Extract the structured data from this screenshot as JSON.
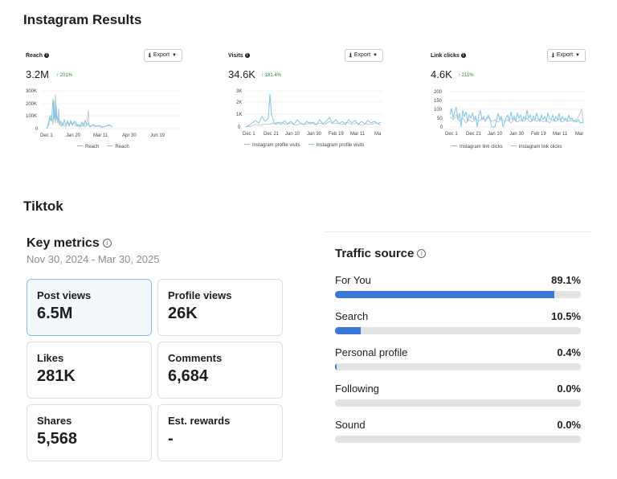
{
  "instagram": {
    "title": "Instagram Results",
    "export_label": "Export",
    "cards": [
      {
        "name": "Reach",
        "value": "3.2M",
        "change": "201%",
        "y_ticks": [
          "300K",
          "200K",
          "100K",
          "0"
        ],
        "x_ticks": [
          "Dec 1",
          "Jan 20",
          "Mar 11",
          "Apr 30",
          "Jun 19"
        ],
        "legend": [
          "Reach",
          "Reach"
        ]
      },
      {
        "name": "Visits",
        "value": "34.6K",
        "change": "181.4%",
        "y_ticks": [
          "3K",
          "2K",
          "1K",
          "0"
        ],
        "x_ticks": [
          "Dec 1",
          "Dec 21",
          "Jan 10",
          "Jan 30",
          "Feb 19",
          "Mar 11",
          "Ma"
        ],
        "legend": [
          "Instagram profile visits",
          "Instagram profile visits"
        ]
      },
      {
        "name": "Link clicks",
        "value": "4.6K",
        "change": "211%",
        "y_ticks": [
          "200",
          "150",
          "100",
          "50",
          "0"
        ],
        "x_ticks": [
          "Dec 1",
          "Dec 21",
          "Jan 10",
          "Jan 30",
          "Feb 19",
          "Mar 11",
          "Mar"
        ],
        "legend": [
          "Instagram link clicks",
          "Instagram link clicks"
        ]
      }
    ]
  },
  "tiktok": {
    "title": "Tiktok",
    "key_metrics": {
      "title": "Key metrics",
      "info_icon": "info-icon",
      "date_range": "Nov 30, 2024 - Mar 30, 2025",
      "metrics": [
        {
          "label": "Post views",
          "value": "6.5M"
        },
        {
          "label": "Profile views",
          "value": "26K"
        },
        {
          "label": "Likes",
          "value": "281K"
        },
        {
          "label": "Comments",
          "value": "6,684"
        },
        {
          "label": "Shares",
          "value": "5,568"
        },
        {
          "label": "Est. rewards",
          "value": "-"
        }
      ]
    },
    "traffic_source": {
      "title": "Traffic source",
      "sources": [
        {
          "name": "For You",
          "percent": "89.1%",
          "value": 89.1
        },
        {
          "name": "Search",
          "percent": "10.5%",
          "value": 10.5
        },
        {
          "name": "Personal profile",
          "percent": "0.4%",
          "value": 0.4
        },
        {
          "name": "Following",
          "percent": "0.0%",
          "value": 0.0
        },
        {
          "name": "Sound",
          "percent": "0.0%",
          "value": 0.0
        }
      ]
    }
  },
  "colors": {
    "current_series": "#7ec6e8",
    "previous_series": "#b8bcc4",
    "bar_fill": "#3a77d6",
    "bar_track": "#e2e3e5",
    "positive_change": "#2e7d32"
  }
}
